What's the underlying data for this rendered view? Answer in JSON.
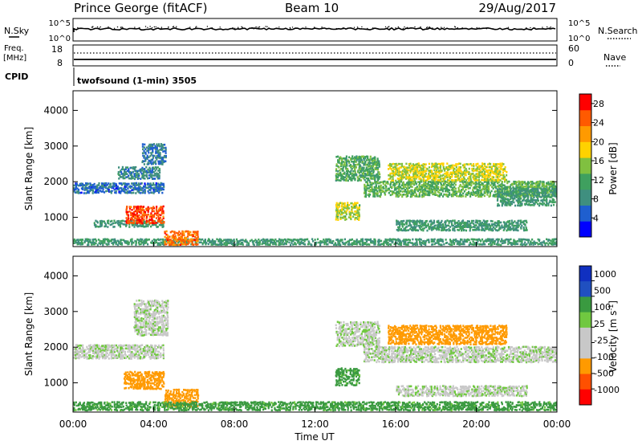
{
  "header": {
    "title": "Prince George (fitACF)",
    "beam": "Beam 10",
    "date": "29/Aug/2017"
  },
  "aux": {
    "nsky_label": "N.Sky",
    "nsky_ticks": [
      "10^5",
      "10^0"
    ],
    "nsky_ticks_right": [
      "10^5",
      "10^0"
    ],
    "nsearch_label": "N.Search",
    "freq_label_line1": "Freq.",
    "freq_label_line2": "[MHz]",
    "freq_ticks": [
      "18",
      "8"
    ],
    "nave_ticks": [
      "60",
      "0"
    ],
    "nave_label": "Nave",
    "cpid_label": "CPID",
    "cpid_text": "twofsound (1-min) 3505"
  },
  "colors": {
    "power": [
      "#0000ff",
      "#1f5fcf",
      "#3f8f7f",
      "#3fa05f",
      "#80c040",
      "#ffd200",
      "#ff9a00",
      "#ff5a00",
      "#ff0000"
    ],
    "velocity": [
      "#ff0000",
      "#ff5000",
      "#ff9a00",
      "#c8c8c8",
      "#c8c8c8",
      "#70c840",
      "#3a9a40",
      "#2050c0",
      "#1030c0"
    ]
  },
  "chart_data": [
    {
      "type": "heatmap",
      "panel": "power",
      "ylabel": "Slant Range [km]",
      "ylim": [
        180,
        4550
      ],
      "yticks": [
        1000,
        2000,
        3000,
        4000
      ],
      "xlim": [
        0,
        24
      ],
      "colorbar_label": "Power [dB]",
      "colorbar_range": [
        0,
        30
      ],
      "colorbar_ticks": [
        "28",
        "24",
        "20",
        "16",
        "12",
        "8",
        "4"
      ],
      "regions": [
        {
          "t0": 0.0,
          "t1": 24.0,
          "r0": 200,
          "r1": 380,
          "value": 10
        },
        {
          "t0": 0.0,
          "t1": 4.5,
          "r0": 1650,
          "r1": 1950,
          "value": 6
        },
        {
          "t0": 2.2,
          "t1": 4.3,
          "r0": 2050,
          "r1": 2400,
          "value": 8
        },
        {
          "t0": 3.4,
          "t1": 4.6,
          "r0": 2450,
          "r1": 3050,
          "value": 7
        },
        {
          "t0": 1.0,
          "t1": 4.5,
          "r0": 700,
          "r1": 900,
          "value": 10
        },
        {
          "t0": 2.6,
          "t1": 4.5,
          "r0": 800,
          "r1": 1300,
          "value": 26
        },
        {
          "t0": 4.5,
          "t1": 6.2,
          "r0": 200,
          "r1": 600,
          "value": 24
        },
        {
          "t0": 13.0,
          "t1": 15.2,
          "r0": 2000,
          "r1": 2700,
          "value": 12
        },
        {
          "t0": 13.0,
          "t1": 14.2,
          "r0": 900,
          "r1": 1400,
          "value": 16
        },
        {
          "t0": 14.4,
          "t1": 24.0,
          "r0": 1550,
          "r1": 2000,
          "value": 13
        },
        {
          "t0": 15.6,
          "t1": 21.5,
          "r0": 2000,
          "r1": 2500,
          "value": 17
        },
        {
          "t0": 16.0,
          "t1": 22.5,
          "r0": 600,
          "r1": 900,
          "value": 10
        },
        {
          "t0": 21.0,
          "t1": 24.0,
          "r0": 1300,
          "r1": 1800,
          "value": 10
        }
      ]
    },
    {
      "type": "heatmap",
      "panel": "velocity",
      "ylabel": "Slant Range [km]",
      "ylim": [
        180,
        4550
      ],
      "yticks": [
        1000,
        2000,
        3000,
        4000
      ],
      "xlim": [
        0,
        24
      ],
      "xticks": [
        "00:00",
        "04:00",
        "08:00",
        "12:00",
        "16:00",
        "20:00",
        "00:00"
      ],
      "xlabel": "Time UT",
      "colorbar_label": "Velocity [m s^-1]",
      "colorbar_ticks": [
        "1000",
        "500",
        "100",
        "25",
        "-25",
        "-100",
        "-500",
        "-1000"
      ],
      "regions": [
        {
          "t0": 0.0,
          "t1": 4.5,
          "r0": 1650,
          "r1": 2050,
          "value": 0
        },
        {
          "t0": 3.0,
          "t1": 4.7,
          "r0": 2300,
          "r1": 3300,
          "value": 0
        },
        {
          "t0": 2.5,
          "t1": 4.5,
          "r0": 800,
          "r1": 1300,
          "value": -300
        },
        {
          "t0": 4.5,
          "t1": 6.2,
          "r0": 300,
          "r1": 800,
          "value": -200
        },
        {
          "t0": 0.0,
          "t1": 24.0,
          "r0": 200,
          "r1": 450,
          "value": 150
        },
        {
          "t0": 13.0,
          "t1": 15.2,
          "r0": 2000,
          "r1": 2700,
          "value": 0
        },
        {
          "t0": 13.0,
          "t1": 14.2,
          "r0": 900,
          "r1": 1400,
          "value": 150
        },
        {
          "t0": 14.4,
          "t1": 24.0,
          "r0": 1550,
          "r1": 2000,
          "value": 0
        },
        {
          "t0": 15.6,
          "t1": 21.5,
          "r0": 2050,
          "r1": 2600,
          "value": -300
        },
        {
          "t0": 16.0,
          "t1": 22.5,
          "r0": 600,
          "r1": 900,
          "value": 0
        }
      ]
    }
  ]
}
